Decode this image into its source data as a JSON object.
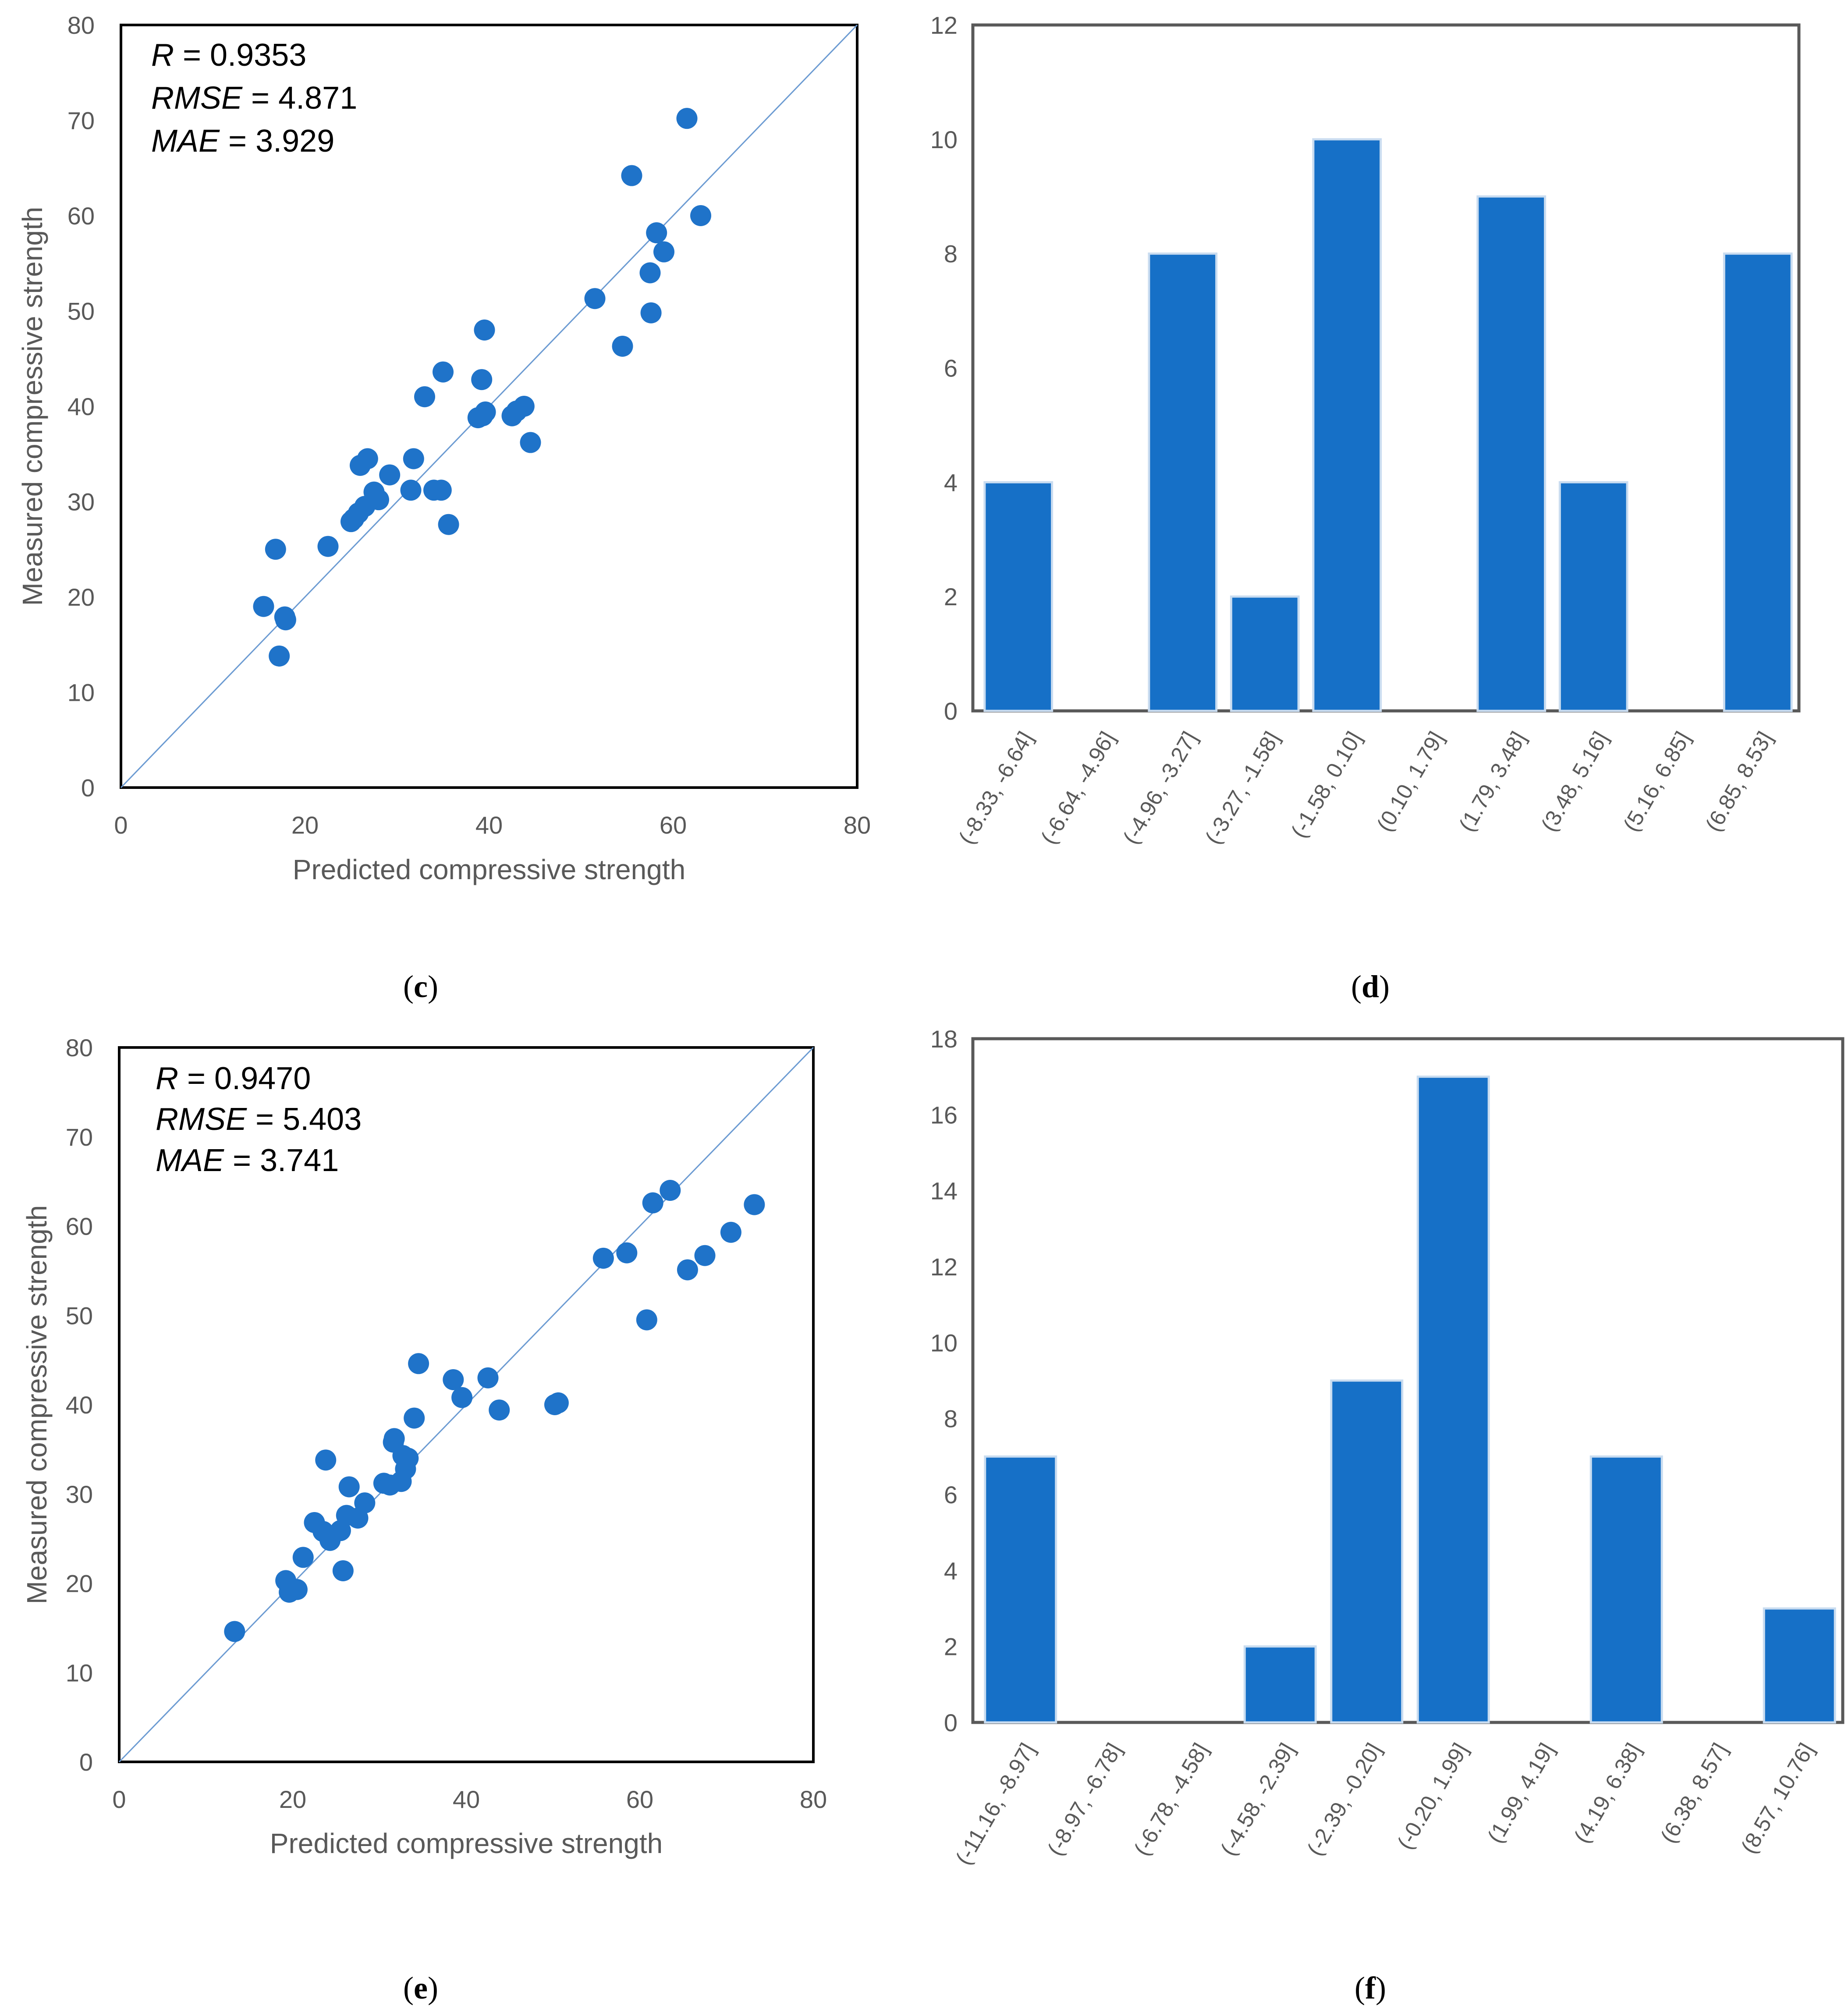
{
  "colors": {
    "marker": "#1f73c9",
    "bar": "#1670c7",
    "bar_edge": "#c9dcf0",
    "line": "#6c9bd2",
    "frame": "#000000",
    "text": "#595959"
  },
  "panels": [
    {
      "label_open": "(",
      "letter": "c",
      "label_close": ")"
    },
    {
      "label_open": "(",
      "letter": "d",
      "label_close": ")"
    },
    {
      "label_open": "(",
      "letter": "e",
      "label_close": ")"
    },
    {
      "label_open": "(",
      "letter": "f",
      "label_close": ")"
    }
  ],
  "chart_data": [
    {
      "id": "c",
      "type": "scatter",
      "xlabel": "Predicted compressive strength",
      "ylabel": "Measured compressive strength",
      "xlim": [
        0,
        80
      ],
      "ylim": [
        0,
        80
      ],
      "xticks": [
        0,
        20,
        40,
        60,
        80
      ],
      "yticks": [
        0,
        10,
        20,
        30,
        40,
        50,
        60,
        70,
        80
      ],
      "reference_line": [
        [
          0,
          0
        ],
        [
          80,
          80
        ]
      ],
      "stats": [
        {
          "name": "R",
          "value": " = 0.9353"
        },
        {
          "name": "RMSE",
          "value": " = 4.871"
        },
        {
          "name": "MAE",
          "value": " = 3.929"
        }
      ],
      "points": [
        [
          15.5,
          19.0
        ],
        [
          16.8,
          25.0
        ],
        [
          17.2,
          13.8
        ],
        [
          17.8,
          17.9
        ],
        [
          17.9,
          17.6
        ],
        [
          22.5,
          25.3
        ],
        [
          25.0,
          27.9
        ],
        [
          25.3,
          28.2
        ],
        [
          25.8,
          28.8
        ],
        [
          26.0,
          33.8
        ],
        [
          26.5,
          29.5
        ],
        [
          26.8,
          34.5
        ],
        [
          27.5,
          31.0
        ],
        [
          28.0,
          30.2
        ],
        [
          29.2,
          32.8
        ],
        [
          31.5,
          31.2
        ],
        [
          31.8,
          34.5
        ],
        [
          33.0,
          41.0
        ],
        [
          34.0,
          31.2
        ],
        [
          34.8,
          31.2
        ],
        [
          35.0,
          43.6
        ],
        [
          35.6,
          27.6
        ],
        [
          38.8,
          38.8
        ],
        [
          39.2,
          42.8
        ],
        [
          39.3,
          39.0
        ],
        [
          39.5,
          48.0
        ],
        [
          39.6,
          39.4
        ],
        [
          42.5,
          39.0
        ],
        [
          43.0,
          39.5
        ],
        [
          43.8,
          40.0
        ],
        [
          44.5,
          36.2
        ],
        [
          51.5,
          51.3
        ],
        [
          54.5,
          46.3
        ],
        [
          55.5,
          64.2
        ],
        [
          57.5,
          54.0
        ],
        [
          57.6,
          49.8
        ],
        [
          58.2,
          58.2
        ],
        [
          59.0,
          56.2
        ],
        [
          61.5,
          70.2
        ],
        [
          63.0,
          60.0
        ]
      ]
    },
    {
      "id": "d",
      "type": "bar",
      "ylim": [
        0,
        12
      ],
      "yticks": [
        0,
        2,
        4,
        6,
        8,
        10,
        12
      ],
      "categories": [
        "(-8.33, -6.64]",
        "(-6.64, -4.96]",
        "(-4.96, -3.27]",
        "(-3.27, -1.58]",
        "(-1.58, 0.10]",
        "(0.10, 1.79]",
        "(1.79, 3.48]",
        "(3.48, 5.16]",
        "(5.16, 6.85]",
        "(6.85, 8.53]"
      ],
      "values": [
        4,
        0,
        8,
        2,
        10,
        0,
        9,
        4,
        0,
        8
      ]
    },
    {
      "id": "e",
      "type": "scatter",
      "xlabel": "Predicted compressive strength",
      "ylabel": "Measured compressive strength",
      "xlim": [
        0,
        80
      ],
      "ylim": [
        0,
        80
      ],
      "xticks": [
        0,
        20,
        40,
        60,
        80
      ],
      "yticks": [
        0,
        10,
        20,
        30,
        40,
        50,
        60,
        70,
        80
      ],
      "reference_line": [
        [
          0,
          0
        ],
        [
          80,
          80
        ]
      ],
      "stats": [
        {
          "name": "R",
          "value": " = 0.9470"
        },
        {
          "name": "RMSE",
          "value": " = 5.403"
        },
        {
          "name": "MAE",
          "value": " = 3.741"
        }
      ],
      "points": [
        [
          13.3,
          14.6
        ],
        [
          19.2,
          20.3
        ],
        [
          19.6,
          19.0
        ],
        [
          20.5,
          19.3
        ],
        [
          21.2,
          22.9
        ],
        [
          22.5,
          26.8
        ],
        [
          23.5,
          25.8
        ],
        [
          23.8,
          33.8
        ],
        [
          24.3,
          24.8
        ],
        [
          25.5,
          25.9
        ],
        [
          25.8,
          21.4
        ],
        [
          26.2,
          27.6
        ],
        [
          26.5,
          30.8
        ],
        [
          27.5,
          27.3
        ],
        [
          28.3,
          29.0
        ],
        [
          30.5,
          31.2
        ],
        [
          31.2,
          31.0
        ],
        [
          31.6,
          35.8
        ],
        [
          31.7,
          36.2
        ],
        [
          32.5,
          31.4
        ],
        [
          32.7,
          34.3
        ],
        [
          33.0,
          32.8
        ],
        [
          33.3,
          34.0
        ],
        [
          34.0,
          38.5
        ],
        [
          34.5,
          44.6
        ],
        [
          38.5,
          42.8
        ],
        [
          39.5,
          40.8
        ],
        [
          42.5,
          43.0
        ],
        [
          43.8,
          39.4
        ],
        [
          50.2,
          40.0
        ],
        [
          50.6,
          40.2
        ],
        [
          55.8,
          56.4
        ],
        [
          58.5,
          57.0
        ],
        [
          60.8,
          49.5
        ],
        [
          61.5,
          62.6
        ],
        [
          63.5,
          64.0
        ],
        [
          65.5,
          55.1
        ],
        [
          67.5,
          56.7
        ],
        [
          70.5,
          59.3
        ],
        [
          73.2,
          62.4
        ]
      ]
    },
    {
      "id": "f",
      "type": "bar",
      "ylim": [
        0,
        18
      ],
      "yticks": [
        0,
        2,
        4,
        6,
        8,
        10,
        12,
        14,
        16,
        18
      ],
      "categories": [
        "(-11.16, -8.97]",
        "(-8.97, -6.78]",
        "(-6.78, -4.58]",
        "(-4.58, -2.39]",
        "(-2.39, -0.20]",
        "(-0.20, 1.99]",
        "(1.99, 4.19]",
        "(4.19, 6.38]",
        "(6.38, 8.57]",
        "(8.57, 10.76]"
      ],
      "values": [
        7,
        0,
        0,
        2,
        9,
        17,
        0,
        7,
        0,
        3
      ]
    }
  ]
}
